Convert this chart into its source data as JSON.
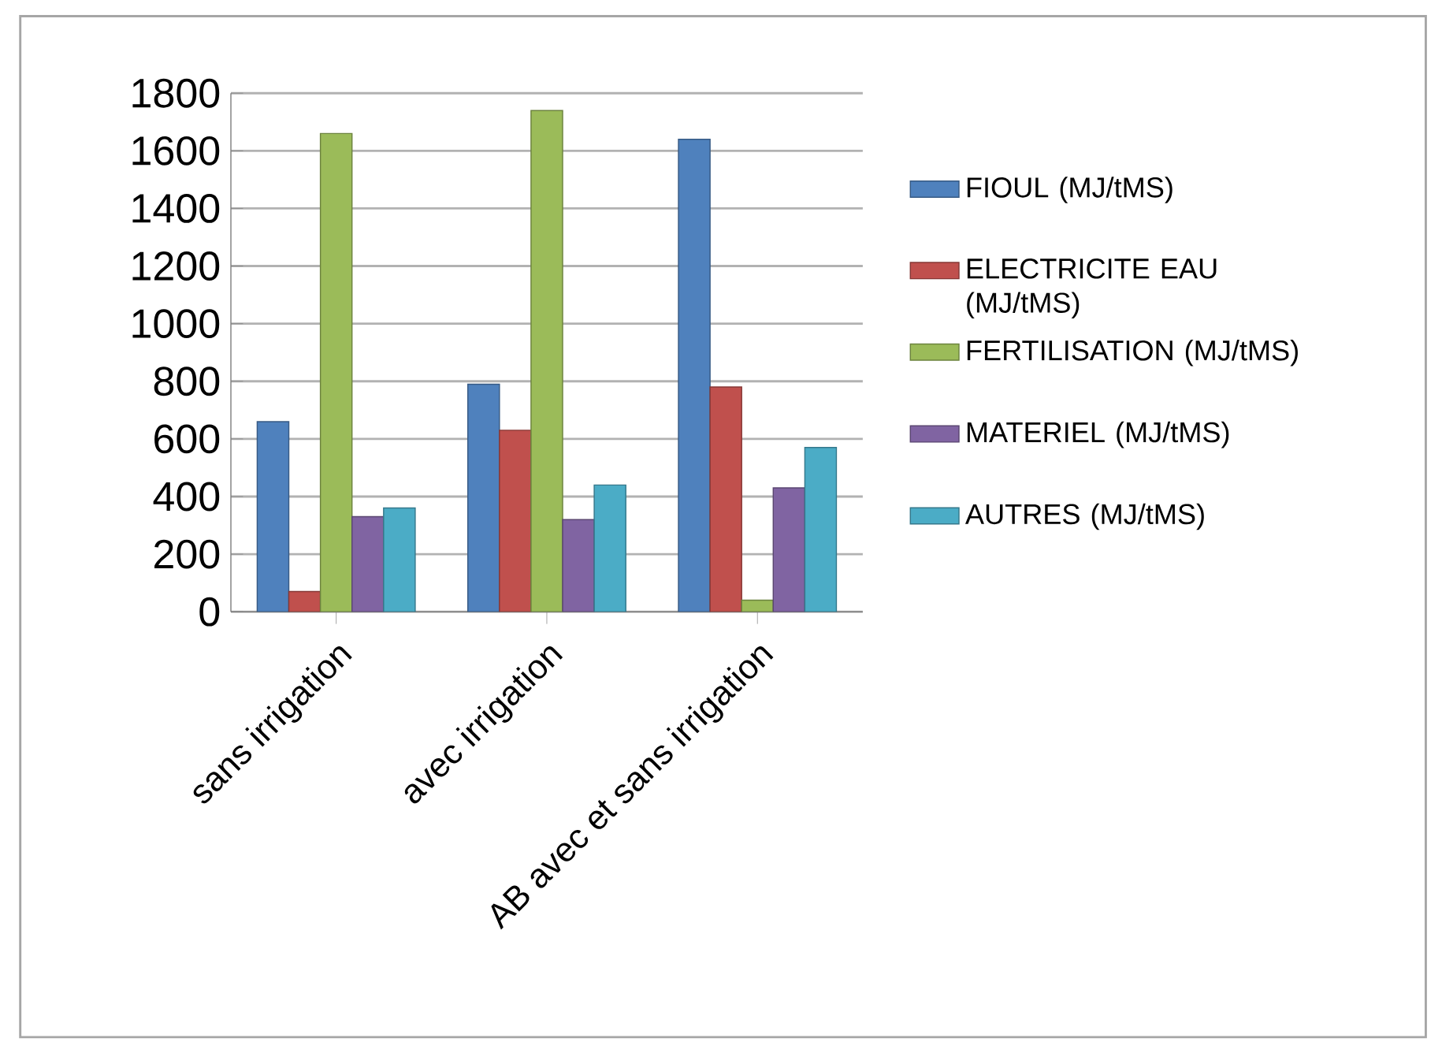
{
  "chart_data": {
    "type": "bar",
    "categories": [
      "sans irrigation",
      "avec irrigation",
      "AB avec et sans irrigation"
    ],
    "series": [
      {
        "name": "FIOUL (MJ/tMS)",
        "color": "#4f81bd",
        "values": [
          660,
          790,
          1640
        ]
      },
      {
        "name": "ELECTRICITE EAU (MJ/tMS)",
        "color": "#c0504d",
        "values": [
          70,
          630,
          780
        ]
      },
      {
        "name": "FERTILISATION (MJ/tMS)",
        "color": "#9bbb59",
        "values": [
          1660,
          1740,
          40
        ]
      },
      {
        "name": "MATERIEL (MJ/tMS)",
        "color": "#8064a2",
        "values": [
          330,
          320,
          430
        ]
      },
      {
        "name": "AUTRES (MJ/tMS)",
        "color": "#4bacc6",
        "values": [
          360,
          440,
          570
        ]
      }
    ],
    "ylim": [
      0,
      1800
    ],
    "yticks": [
      0,
      200,
      400,
      600,
      800,
      1000,
      1200,
      1400,
      1600,
      1800
    ],
    "grid": "y",
    "legend": "right"
  }
}
